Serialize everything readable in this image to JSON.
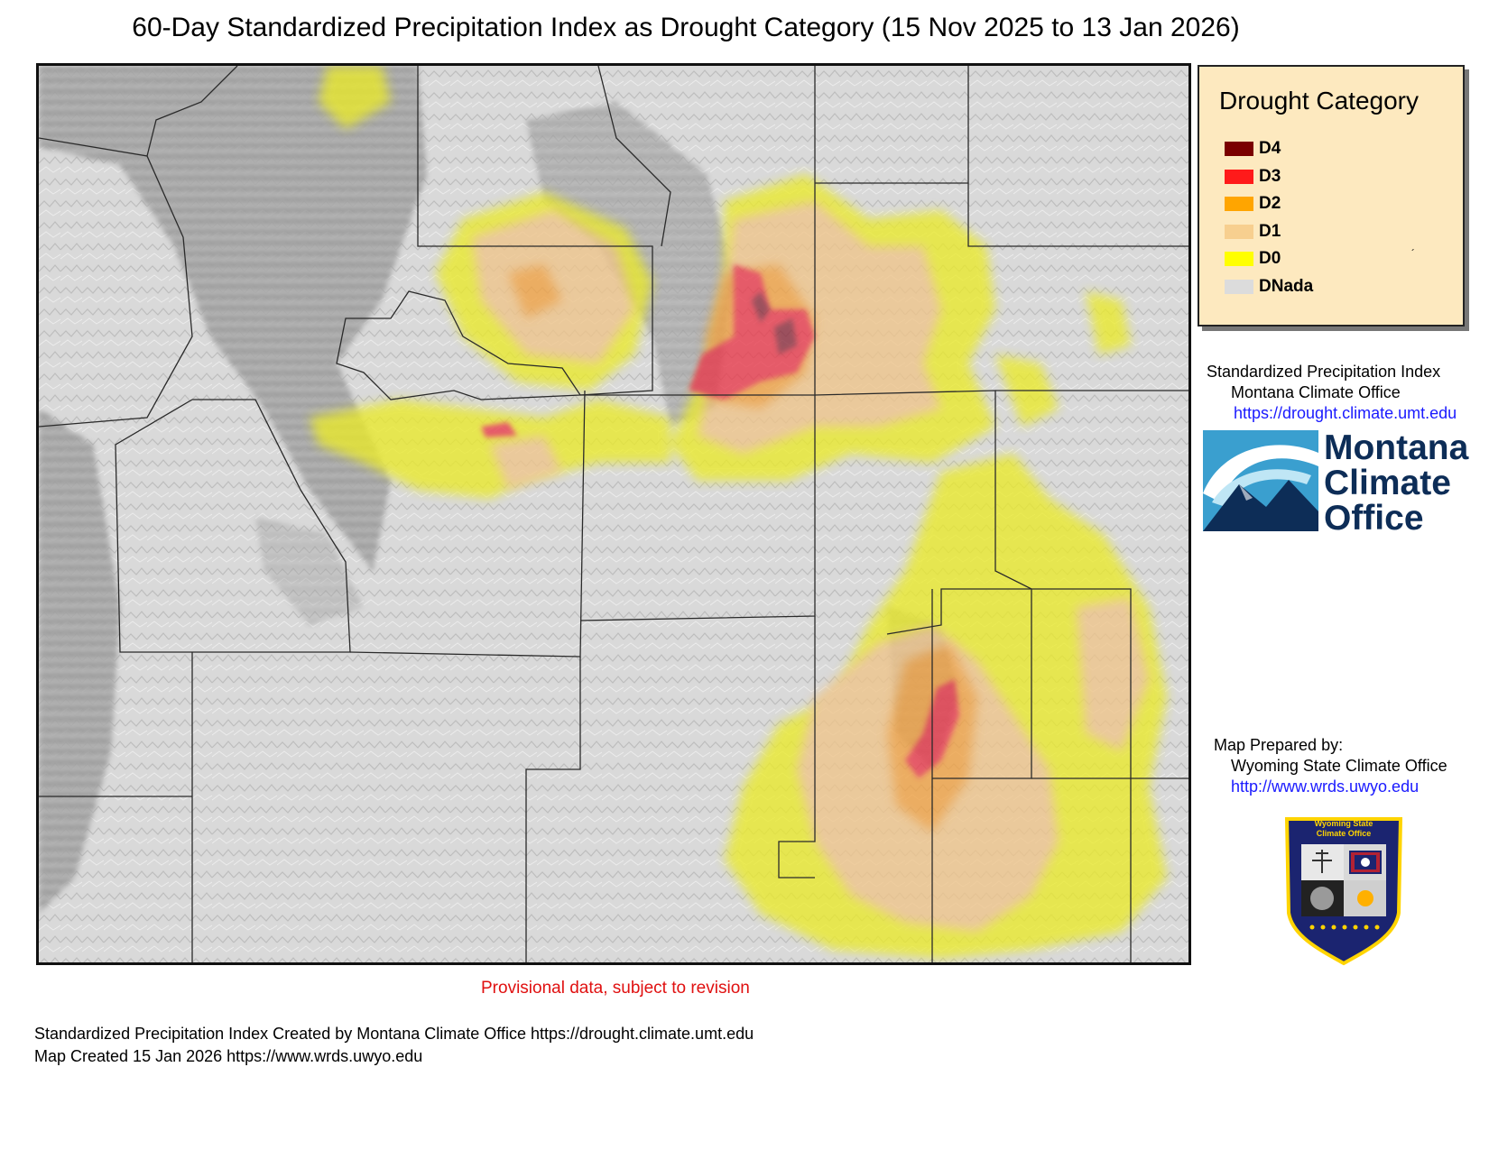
{
  "title": "60-Day Standardized Precipitation Index as Drought Category (15 Nov 2025 to 13 Jan 2026)",
  "legend": {
    "title": "Drought Category",
    "items": [
      {
        "label": "D4",
        "color": "#7a0000"
      },
      {
        "label": "D3",
        "color": "#ff1a1a"
      },
      {
        "label": "D2",
        "color": "#ffa500"
      },
      {
        "label": "D1",
        "color": "#f7cf8f"
      },
      {
        "label": "D0",
        "color": "#ffff00"
      },
      {
        "label": "DNada",
        "color": "#dcdcdc"
      }
    ]
  },
  "spi_credit": {
    "line1": "Standardized Precipitation Index",
    "line2": "Montana Climate Office",
    "url": "https://drought.climate.umt.edu"
  },
  "mco_logo": {
    "line1": "Montana",
    "line2": "Climate",
    "line3": "Office"
  },
  "prepared": {
    "label": "Map Prepared by:",
    "org": "Wyoming State Climate Office",
    "url": "http://www.wrds.uwyo.edu"
  },
  "wsco_badge": {
    "title_line1": "Wyoming State",
    "title_line2": "Climate Office"
  },
  "provisional": "Provisional data, subject to revision",
  "footer": {
    "line1": "Standardized Precipitation Index Created by Montana Climate Office https://drought.climate.umt.edu",
    "line2": "Map Created 15 Jan 2026 https://www.wrds.uwyo.edu"
  }
}
